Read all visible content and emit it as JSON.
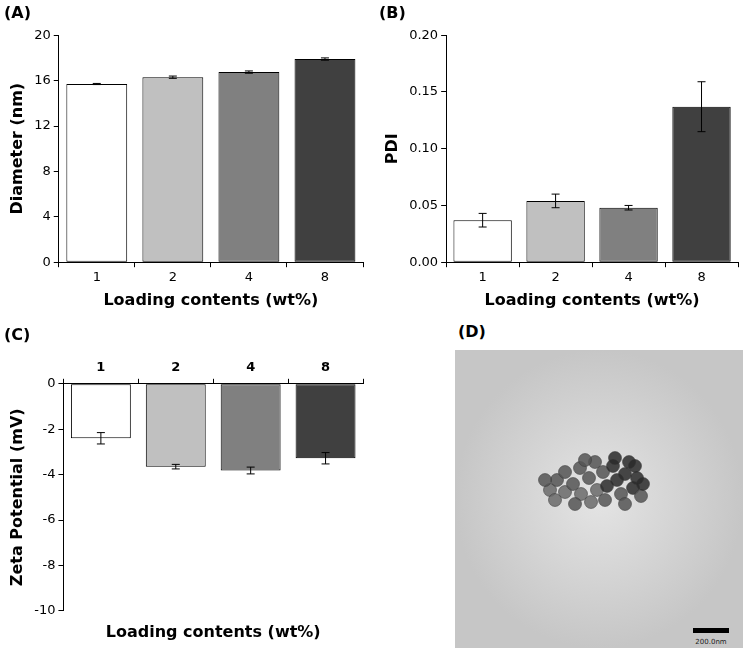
{
  "chart_data": [
    {
      "type": "bar",
      "title": "(A)",
      "x_label": "Loading contents (wt%)",
      "y_label": "Diameter (nm)",
      "categories": [
        "1",
        "2",
        "4",
        "8"
      ],
      "values": [
        15.7,
        16.3,
        16.75,
        17.9
      ],
      "errors": [
        0.05,
        0.1,
        0.1,
        0.1
      ],
      "colors": [
        "#ffffff",
        "#c0c0c0",
        "#808080",
        "#404040"
      ],
      "ylim": [
        0,
        20
      ],
      "yticks": [
        0,
        4,
        8,
        12,
        16,
        20
      ],
      "grid": false
    },
    {
      "type": "bar",
      "title": "(B)",
      "x_label": "Loading contents (wt%)",
      "y_label": "PDI",
      "categories": [
        "1",
        "2",
        "4",
        "8"
      ],
      "values": [
        0.037,
        0.054,
        0.048,
        0.137
      ],
      "errors": [
        0.006,
        0.006,
        0.002,
        0.022
      ],
      "colors": [
        "#ffffff",
        "#c0c0c0",
        "#808080",
        "#404040"
      ],
      "ylim": [
        0,
        0.2
      ],
      "yticks": [
        {
          "value": 0,
          "label": "0.00"
        },
        {
          "value": 0.05,
          "label": "0.05"
        },
        {
          "value": 0.1,
          "label": "0.10"
        },
        {
          "value": 0.15,
          "label": "0.15"
        },
        {
          "value": 0.2,
          "label": "0.20"
        }
      ],
      "grid": false
    },
    {
      "type": "bar",
      "title": "(C)",
      "x_label": "Loading contents (wt%)",
      "y_label": "Zeta Potential (mV)",
      "categories": [
        "1",
        "2",
        "4",
        "8"
      ],
      "values": [
        -2.4,
        -3.65,
        -3.82,
        -3.28
      ],
      "errors": [
        0.25,
        0.1,
        0.15,
        0.25
      ],
      "colors": [
        "#ffffff",
        "#c0c0c0",
        "#808080",
        "#404040"
      ],
      "ylim": [
        -10,
        0
      ],
      "yticks": [
        -10,
        -8,
        -6,
        -4,
        -2,
        0
      ],
      "grid": false
    }
  ],
  "image": {
    "title": "(D)",
    "scale_bar": "200.0nm"
  }
}
